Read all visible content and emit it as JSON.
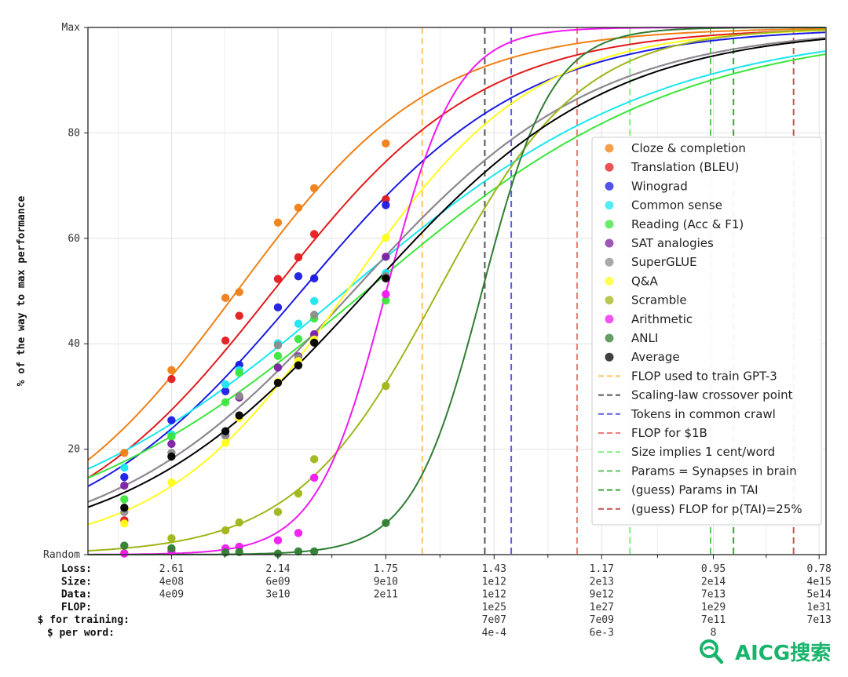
{
  "chart_data": {
    "type": "line",
    "ylabel": "% of the way to max performance",
    "ylim": [
      "Random",
      "Max"
    ],
    "yticks": [
      {
        "value": 0,
        "label": "Random"
      },
      {
        "value": 20,
        "label": "20"
      },
      {
        "value": 40,
        "label": "40"
      },
      {
        "value": 60,
        "label": "60"
      },
      {
        "value": 80,
        "label": "80"
      },
      {
        "value": 100,
        "label": "Max"
      }
    ],
    "x_scale": "log FLOP (Loss axis)",
    "xlim_loss": [
      3.05,
      0.77
    ],
    "x_columns": [
      {
        "loss": 2.61,
        "labels": [
          "2.61",
          "4e08",
          "4e09",
          "",
          "",
          ""
        ]
      },
      {
        "loss": 2.14,
        "labels": [
          "2.14",
          "6e09",
          "3e10",
          "",
          "",
          ""
        ]
      },
      {
        "loss": 1.75,
        "labels": [
          "1.75",
          "9e10",
          "2e11",
          "",
          "",
          ""
        ]
      },
      {
        "loss": 1.43,
        "labels": [
          "1.43",
          "1e12",
          "1e12",
          "1e25",
          "7e07",
          "4e-4"
        ]
      },
      {
        "loss": 1.17,
        "labels": [
          "1.17",
          "2e13",
          "9e12",
          "1e27",
          "7e09",
          "6e-3"
        ]
      },
      {
        "loss": 0.95,
        "labels": [
          "0.95",
          "2e14",
          "7e13",
          "1e29",
          "7e11",
          "8"
        ]
      },
      {
        "loss": 0.78,
        "labels": [
          "0.78",
          "4e15",
          "5e14",
          "1e31",
          "7e13",
          ""
        ]
      }
    ],
    "row_labels": [
      "Loss:",
      "Size:",
      "Data:",
      "FLOP:",
      "$ for training:",
      "$ per word:"
    ],
    "series": [
      {
        "name": "Cloze & completion",
        "color": "#f07f14",
        "points": [
          [
            2.85,
            19.3
          ],
          [
            2.61,
            35
          ],
          [
            2.36,
            48.7
          ],
          [
            2.3,
            49.8
          ],
          [
            2.14,
            63
          ],
          [
            2.06,
            65.8
          ],
          [
            2.0,
            69.5
          ],
          [
            1.75,
            78
          ]
        ]
      },
      {
        "name": "Translation (BLEU)",
        "color": "#e31a1c",
        "points": [
          [
            2.85,
            6.5
          ],
          [
            2.61,
            33.3
          ],
          [
            2.36,
            40.6
          ],
          [
            2.3,
            45.3
          ],
          [
            2.14,
            52.3
          ],
          [
            2.06,
            56.4
          ],
          [
            2.0,
            60.8
          ],
          [
            1.75,
            67.4
          ]
        ]
      },
      {
        "name": "Winograd",
        "color": "#1a1ae3",
        "points": [
          [
            2.85,
            14.7
          ],
          [
            2.61,
            25.5
          ],
          [
            2.36,
            31
          ],
          [
            2.3,
            36
          ],
          [
            2.14,
            46.9
          ],
          [
            2.06,
            52.8
          ],
          [
            2.0,
            52.4
          ],
          [
            1.75,
            66.3
          ]
        ]
      },
      {
        "name": "Common sense",
        "color": "#19e6f0",
        "points": [
          [
            2.85,
            16.5
          ],
          [
            2.61,
            22.8
          ],
          [
            2.36,
            32.3
          ],
          [
            2.3,
            35
          ],
          [
            2.14,
            40.1
          ],
          [
            2.06,
            43.8
          ],
          [
            2.0,
            48.1
          ],
          [
            1.75,
            53.4
          ]
        ]
      },
      {
        "name": "Reading (Acc & F1)",
        "color": "#3ae63a",
        "points": [
          [
            2.85,
            10.5
          ],
          [
            2.61,
            22.4
          ],
          [
            2.36,
            28.9
          ],
          [
            2.3,
            34.5
          ],
          [
            2.14,
            37.7
          ],
          [
            2.06,
            40.9
          ],
          [
            2.0,
            44.8
          ],
          [
            1.75,
            48.2
          ]
        ]
      },
      {
        "name": "SAT analogies",
        "color": "#7b1fa2",
        "points": [
          [
            2.85,
            13.1
          ],
          [
            2.61,
            21
          ],
          [
            2.36,
            22.6
          ],
          [
            2.3,
            29.8
          ],
          [
            2.14,
            35.5
          ],
          [
            2.06,
            37.6
          ],
          [
            2.0,
            41.8
          ],
          [
            1.75,
            56.5
          ]
        ]
      },
      {
        "name": "SuperGLUE",
        "color": "#8c8c8c",
        "points": [
          [
            2.85,
            8.1
          ],
          [
            2.61,
            19.3
          ],
          [
            2.36,
            22.7
          ],
          [
            2.3,
            30.1
          ],
          [
            2.14,
            39.7
          ],
          [
            2.06,
            37.4
          ],
          [
            2.0,
            45.5
          ],
          [
            1.75,
            52.8
          ]
        ]
      },
      {
        "name": "Q&A",
        "color": "#ffff19",
        "points": [
          [
            2.85,
            5.9
          ],
          [
            2.61,
            13.7
          ],
          [
            2.36,
            21.2
          ],
          [
            2.3,
            25.9
          ],
          [
            2.14,
            32.8
          ],
          [
            2.06,
            36.7
          ],
          [
            2.0,
            40.8
          ],
          [
            1.75,
            60.1
          ]
        ]
      },
      {
        "name": "Scramble",
        "color": "#a0b519",
        "points": [
          [
            2.85,
            0.3
          ],
          [
            2.61,
            3.1
          ],
          [
            2.36,
            4.6
          ],
          [
            2.3,
            6.1
          ],
          [
            2.14,
            8.1
          ],
          [
            2.06,
            11.6
          ],
          [
            2.0,
            18.1
          ],
          [
            1.75,
            32
          ]
        ]
      },
      {
        "name": "Arithmetic",
        "color": "#f019f0",
        "points": [
          [
            2.85,
            0.2
          ],
          [
            2.61,
            0.6
          ],
          [
            2.36,
            1.2
          ],
          [
            2.3,
            1.5
          ],
          [
            2.14,
            2.7
          ],
          [
            2.06,
            4.1
          ],
          [
            2.0,
            14.6
          ],
          [
            1.75,
            49.4
          ]
        ]
      },
      {
        "name": "ANLI",
        "color": "#2f7d32",
        "points": [
          [
            2.85,
            1.7
          ],
          [
            2.61,
            1.2
          ],
          [
            2.36,
            0.4
          ],
          [
            2.3,
            0.5
          ],
          [
            2.14,
            0.2
          ],
          [
            2.06,
            0.6
          ],
          [
            2.0,
            0.6
          ],
          [
            1.75,
            6
          ]
        ]
      },
      {
        "name": "Average",
        "color": "#000000",
        "points": [
          [
            2.85,
            8.9
          ],
          [
            2.61,
            18.6
          ],
          [
            2.36,
            23.4
          ],
          [
            2.3,
            26.4
          ],
          [
            2.14,
            32.6
          ],
          [
            2.06,
            35.9
          ],
          [
            2.0,
            40.2
          ],
          [
            1.75,
            52.4
          ]
        ]
      }
    ],
    "vlines": [
      {
        "name": "FLOP used to train GPT-3",
        "color": "#ffc266",
        "loss": 1.635
      },
      {
        "name": "Scaling-law crossover point",
        "color": "#555555",
        "loss": 1.455
      },
      {
        "name": "Tokens in common crawl",
        "color": "#5b5bf0",
        "loss": 1.385
      },
      {
        "name": "FLOP for $1B",
        "color": "#f07a7a",
        "loss": 1.225
      },
      {
        "name": "Size implies 1 cent/word",
        "color": "#80ef80",
        "loss": 1.11
      },
      {
        "name": "Params = Synapses in brain",
        "color": "#5cc45c",
        "loss": 0.955
      },
      {
        "name": "(guess) Params in TAI",
        "color": "#3da33d",
        "loss": 0.915
      },
      {
        "name": "(guess) FLOP for p(TAI)=25%",
        "color": "#c35252",
        "loss": 0.818
      }
    ],
    "legend_position": "center-right",
    "grid": true
  },
  "watermark": {
    "text": "AICG搜索",
    "icon": "search-icon"
  }
}
